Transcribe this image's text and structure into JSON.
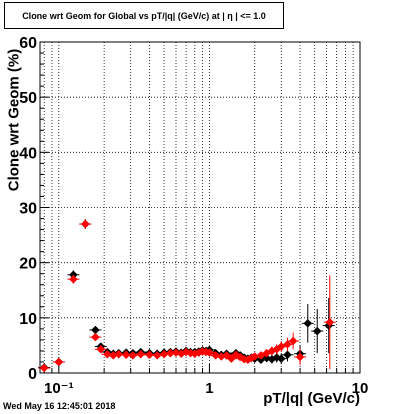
{
  "title": "Clone wrt Geom for Global vs pT/|q| (GeV/c) at | η | <= 1.0",
  "datestamp": "Wed May 16 12:45:01 2018",
  "chart_data": {
    "type": "scatter",
    "title": "Clone wrt Geom for Global vs pT/|q| (GeV/c) at | η | <= 1.0",
    "xlabel": "pT/|q| (GeV/c)",
    "ylabel": "Clone wrt Geom (%)",
    "xscale": "log",
    "xlim": [
      0.075,
      10
    ],
    "ylim": [
      0,
      60
    ],
    "yticks": [
      0,
      10,
      20,
      30,
      40,
      50,
      60
    ],
    "xticks": [
      {
        "value": 0.1,
        "label": "10⁻¹"
      },
      {
        "value": 1,
        "label": "1"
      },
      {
        "value": 10,
        "label": "10"
      }
    ],
    "grid": true,
    "series": [
      {
        "color": "#000000",
        "marker": "diamond",
        "points": [
          [
            0.08,
            1.0,
            0.3
          ],
          [
            0.1,
            2.0,
            0.4
          ],
          [
            0.125,
            17.8,
            0.8
          ],
          [
            0.15,
            27.0,
            0.9
          ],
          [
            0.175,
            7.8,
            0.6
          ],
          [
            0.19,
            4.8,
            0.5
          ],
          [
            0.21,
            3.8,
            0.4
          ],
          [
            0.23,
            3.5,
            0.3
          ],
          [
            0.25,
            3.6,
            0.3
          ],
          [
            0.28,
            3.7,
            0.3
          ],
          [
            0.31,
            3.6,
            0.3
          ],
          [
            0.35,
            3.8,
            0.3
          ],
          [
            0.4,
            3.6,
            0.3
          ],
          [
            0.45,
            3.5,
            0.3
          ],
          [
            0.5,
            3.7,
            0.3
          ],
          [
            0.55,
            3.8,
            0.3
          ],
          [
            0.6,
            3.9,
            0.3
          ],
          [
            0.65,
            3.7,
            0.3
          ],
          [
            0.7,
            4.0,
            0.3
          ],
          [
            0.75,
            3.8,
            0.3
          ],
          [
            0.8,
            3.8,
            0.3
          ],
          [
            0.85,
            3.9,
            0.3
          ],
          [
            0.9,
            4.1,
            0.3
          ],
          [
            0.95,
            4.0,
            0.3
          ],
          [
            1.0,
            4.2,
            0.4
          ],
          [
            1.1,
            3.6,
            0.4
          ],
          [
            1.2,
            3.3,
            0.4
          ],
          [
            1.3,
            3.5,
            0.4
          ],
          [
            1.4,
            3.0,
            0.4
          ],
          [
            1.5,
            3.6,
            0.5
          ],
          [
            1.6,
            3.2,
            0.5
          ],
          [
            1.7,
            2.8,
            0.5
          ],
          [
            1.8,
            2.6,
            0.5
          ],
          [
            1.9,
            2.8,
            0.5
          ],
          [
            2.0,
            2.6,
            0.6
          ],
          [
            2.2,
            2.4,
            0.6
          ],
          [
            2.4,
            2.7,
            0.7
          ],
          [
            2.6,
            2.5,
            0.8
          ],
          [
            2.8,
            2.8,
            0.9
          ],
          [
            3.0,
            2.6,
            1.0
          ],
          [
            3.3,
            3.3,
            1.2
          ],
          [
            4.0,
            3.5,
            1.5
          ],
          [
            4.5,
            9.0,
            3.5
          ],
          [
            5.2,
            7.6,
            4.0
          ],
          [
            6.2,
            8.6,
            5.0
          ]
        ]
      },
      {
        "color": "#ff0000",
        "marker": "diamond",
        "points": [
          [
            0.08,
            0.9,
            0.3
          ],
          [
            0.1,
            2.0,
            0.4
          ],
          [
            0.125,
            17.0,
            0.8
          ],
          [
            0.15,
            27.0,
            0.9
          ],
          [
            0.175,
            6.5,
            0.6
          ],
          [
            0.19,
            4.3,
            0.5
          ],
          [
            0.21,
            3.4,
            0.4
          ],
          [
            0.23,
            3.2,
            0.3
          ],
          [
            0.25,
            3.4,
            0.3
          ],
          [
            0.28,
            3.3,
            0.3
          ],
          [
            0.31,
            3.2,
            0.3
          ],
          [
            0.35,
            3.4,
            0.3
          ],
          [
            0.4,
            3.3,
            0.3
          ],
          [
            0.45,
            3.2,
            0.3
          ],
          [
            0.5,
            3.4,
            0.3
          ],
          [
            0.55,
            3.6,
            0.3
          ],
          [
            0.6,
            3.7,
            0.3
          ],
          [
            0.65,
            3.5,
            0.3
          ],
          [
            0.7,
            3.8,
            0.3
          ],
          [
            0.75,
            3.6,
            0.3
          ],
          [
            0.8,
            3.5,
            0.3
          ],
          [
            0.85,
            3.7,
            0.3
          ],
          [
            0.9,
            3.9,
            0.3
          ],
          [
            0.95,
            3.8,
            0.3
          ],
          [
            1.0,
            3.7,
            0.4
          ],
          [
            1.1,
            3.2,
            0.4
          ],
          [
            1.2,
            3.0,
            0.4
          ],
          [
            1.3,
            3.2,
            0.4
          ],
          [
            1.4,
            2.6,
            0.4
          ],
          [
            1.5,
            3.3,
            0.5
          ],
          [
            1.6,
            2.9,
            0.5
          ],
          [
            1.7,
            2.5,
            0.5
          ],
          [
            1.8,
            2.4,
            0.5
          ],
          [
            1.9,
            2.7,
            0.5
          ],
          [
            2.0,
            3.0,
            0.6
          ],
          [
            2.2,
            3.2,
            0.6
          ],
          [
            2.4,
            3.6,
            0.7
          ],
          [
            2.6,
            4.0,
            0.8
          ],
          [
            2.8,
            4.3,
            0.9
          ],
          [
            3.0,
            4.8,
            1.0
          ],
          [
            3.3,
            5.2,
            1.2
          ],
          [
            3.6,
            5.8,
            1.5
          ],
          [
            4.0,
            2.9,
            1.5
          ],
          [
            6.3,
            9.2,
            8.5
          ]
        ]
      }
    ]
  }
}
